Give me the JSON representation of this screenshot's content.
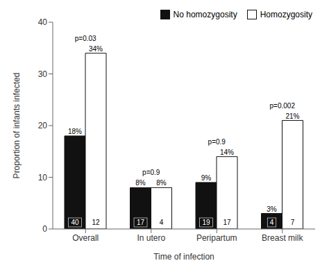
{
  "chart_data": {
    "type": "bar",
    "categories": [
      "Overall",
      "In utero",
      "Peripartum",
      "Breast milk"
    ],
    "series": [
      {
        "name": "No homozygosity",
        "color": "#111111",
        "values": [
          18,
          8,
          9,
          3
        ],
        "value_labels": [
          "18%",
          "8%",
          "9%",
          "3%"
        ],
        "n": [
          40,
          17,
          19,
          4
        ]
      },
      {
        "name": "Homozygosity",
        "color": "#ffffff",
        "values": [
          34,
          8,
          14,
          21
        ],
        "value_labels": [
          "34%",
          "8%",
          "14%",
          "21%"
        ],
        "n": [
          12,
          4,
          17,
          7
        ]
      }
    ],
    "annotations": [
      "p=0.03",
      "p=0.9",
      "p=0.9",
      "p=0.002"
    ],
    "xlabel": "Time of infection",
    "ylabel": "Proportion of infants infected",
    "ylim": [
      0,
      40
    ],
    "yticks": [
      0,
      10,
      20,
      30,
      40
    ],
    "data_labels": true,
    "legend": "upper right",
    "grid": false
  }
}
